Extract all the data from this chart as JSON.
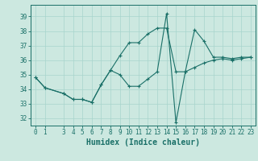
{
  "xlabel": "Humidex (Indice chaleur)",
  "bg_color": "#cce8e0",
  "line_color": "#1a7068",
  "grid_color": "#a8d4cc",
  "x_ticks": [
    0,
    1,
    3,
    4,
    5,
    6,
    7,
    8,
    9,
    10,
    11,
    12,
    13,
    14,
    15,
    16,
    17,
    18,
    19,
    20,
    21,
    22,
    23
  ],
  "yticks": [
    32,
    33,
    34,
    35,
    36,
    37,
    38,
    39
  ],
  "ylim": [
    31.5,
    39.8
  ],
  "xlim": [
    -0.5,
    23.5
  ],
  "series1_x": [
    0,
    1,
    3,
    4,
    5,
    6,
    7,
    8,
    9,
    10,
    11,
    12,
    13,
    14,
    15,
    16,
    17,
    18,
    19,
    20,
    21,
    22,
    23
  ],
  "series1_y": [
    34.8,
    34.1,
    33.7,
    33.3,
    33.3,
    33.1,
    34.3,
    35.3,
    36.3,
    37.2,
    37.2,
    37.8,
    38.2,
    38.2,
    35.2,
    35.2,
    38.1,
    37.3,
    36.2,
    36.2,
    36.1,
    36.2,
    36.2
  ],
  "series2_x": [
    0,
    1,
    3,
    4,
    5,
    6,
    7,
    8,
    9,
    10,
    11,
    12,
    13,
    14,
    15,
    16,
    17,
    18,
    19,
    20,
    21,
    22,
    23
  ],
  "series2_y": [
    34.8,
    34.1,
    33.7,
    33.3,
    33.3,
    33.1,
    34.3,
    35.3,
    35.0,
    34.2,
    34.2,
    34.7,
    35.2,
    39.2,
    31.7,
    35.2,
    35.5,
    35.8,
    36.0,
    36.1,
    36.0,
    36.1,
    36.2
  ]
}
